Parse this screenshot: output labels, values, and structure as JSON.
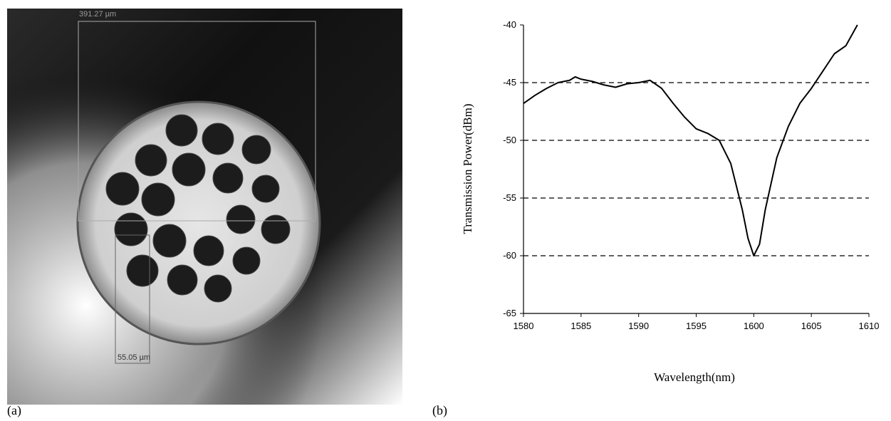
{
  "image": {
    "caption": "(a)",
    "labels": [
      "391.27 µm",
      "55.05 µm"
    ]
  },
  "chart_data": {
    "type": "line",
    "caption": "(b)",
    "x_label": "Wavelength(nm)",
    "y_label": "Transmission Power(dBm)",
    "x": [
      1580,
      1581,
      1582,
      1583,
      1584,
      1584.5,
      1585,
      1586,
      1587,
      1588,
      1589,
      1590,
      1591,
      1592,
      1593,
      1594,
      1595,
      1596,
      1597,
      1598,
      1599,
      1599.5,
      1600,
      1600.5,
      1601,
      1602,
      1603,
      1604,
      1605,
      1606,
      1607,
      1608,
      1609
    ],
    "series": [
      {
        "color": "#000000",
        "values": [
          -46.8,
          -46.1,
          -45.5,
          -45.0,
          -44.8,
          -44.5,
          -44.7,
          -44.9,
          -45.2,
          -45.4,
          -45.1,
          -45.0,
          -44.8,
          -45.5,
          -46.8,
          -48.0,
          -49.0,
          -49.4,
          -50.0,
          -52.0,
          -56.0,
          -58.5,
          -60.0,
          -59.0,
          -56.0,
          -51.5,
          -48.8,
          -46.8,
          -45.5,
          -44.0,
          -42.5,
          -41.8,
          -40.0
        ]
      }
    ],
    "xlim": [
      1580,
      1610
    ],
    "xticks": [
      1580,
      1585,
      1590,
      1595,
      1600,
      1605,
      1610
    ],
    "ylim": [
      -65,
      -40
    ],
    "yticks": [
      -65,
      -60,
      -55,
      -50,
      -45,
      -40
    ],
    "grid": true
  }
}
